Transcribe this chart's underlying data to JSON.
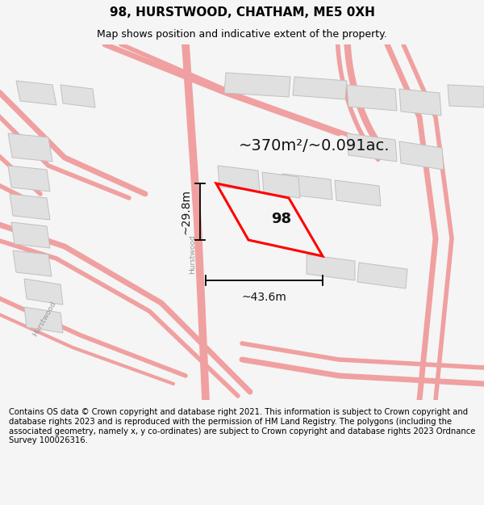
{
  "title": "98, HURSTWOOD, CHATHAM, ME5 0XH",
  "subtitle": "Map shows position and indicative extent of the property.",
  "footer": "Contains OS data © Crown copyright and database right 2021. This information is subject to Crown copyright and database rights 2023 and is reproduced with the permission of HM Land Registry. The polygons (including the associated geometry, namely x, y co-ordinates) are subject to Crown copyright and database rights 2023 Ordnance Survey 100026316.",
  "area_label": "~370m²/~0.091ac.",
  "property_label": "98",
  "width_label": "~43.6m",
  "height_label": "~29.8m",
  "bg_color": "#f5f5f5",
  "map_bg": "#ffffff",
  "road_color": "#f0a0a0",
  "block_color": "#e0e0e0",
  "block_edge": "#c0c0c0",
  "property_color": "#ff0000",
  "title_fontsize": 11,
  "subtitle_fontsize": 9,
  "footer_fontsize": 7.2,
  "street_label": "Hurstwood",
  "street_label2": "Hurstwood"
}
